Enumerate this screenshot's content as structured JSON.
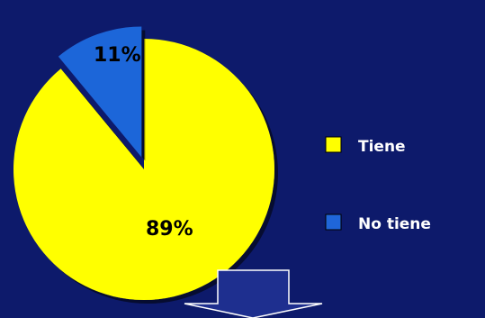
{
  "chart_data": {
    "type": "pie",
    "slices": [
      {
        "name": "Tiene",
        "value": 89,
        "label": "89%",
        "color": "#ffff00"
      },
      {
        "name": "No tiene",
        "value": 11,
        "label": "11%",
        "color": "#1f66d9"
      }
    ],
    "legend": {
      "placement": "right",
      "entries": [
        "Tiene",
        "No tiene"
      ]
    },
    "exploded_slice": "No tiene"
  },
  "colors": {
    "background": "#0d1a6b",
    "down_arrow_fill": "#1e2f8f",
    "down_arrow_stroke": "#ffffff"
  },
  "decorations": {
    "down_arrow_icon": "down-arrow-icon"
  }
}
